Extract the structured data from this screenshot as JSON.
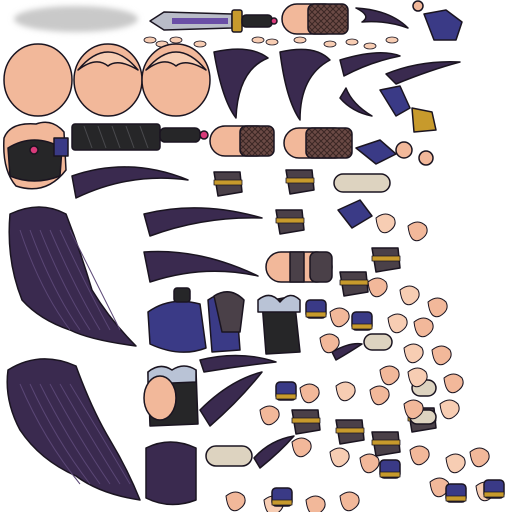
{
  "atlas": {
    "kind": "character texture atlas",
    "background": "#ffffff",
    "colors": {
      "skin": "#f2b89a",
      "skin_light": "#f7cdb3",
      "skin_shade": "#d98f73",
      "hair": "#3a2a4f",
      "hair_light": "#5a4675",
      "hair_dark": "#1c1428",
      "armor_blue": "#3a3a86",
      "armor_blue_light": "#5b5bb0",
      "black": "#262628",
      "leather": "#4a4048",
      "gold": "#c79a2c",
      "fur": "#ddd3c0",
      "fur_shade": "#b9ac98",
      "frill": "#b9c3d6",
      "sword_purple": "#6a4ea6",
      "outline": "#1a1420",
      "shadow": "#d6d6d6",
      "accent_pink": "#d93b7a"
    },
    "pieces": [
      "shadow-ellipse",
      "sword",
      "leg-stocking",
      "hair-strand",
      "hand-glove",
      "head-base",
      "hair-bang",
      "sheath",
      "torso-armor",
      "boot",
      "fur-cuff",
      "long-hair",
      "shoulder-pad",
      "skirt",
      "finger-parts"
    ]
  }
}
